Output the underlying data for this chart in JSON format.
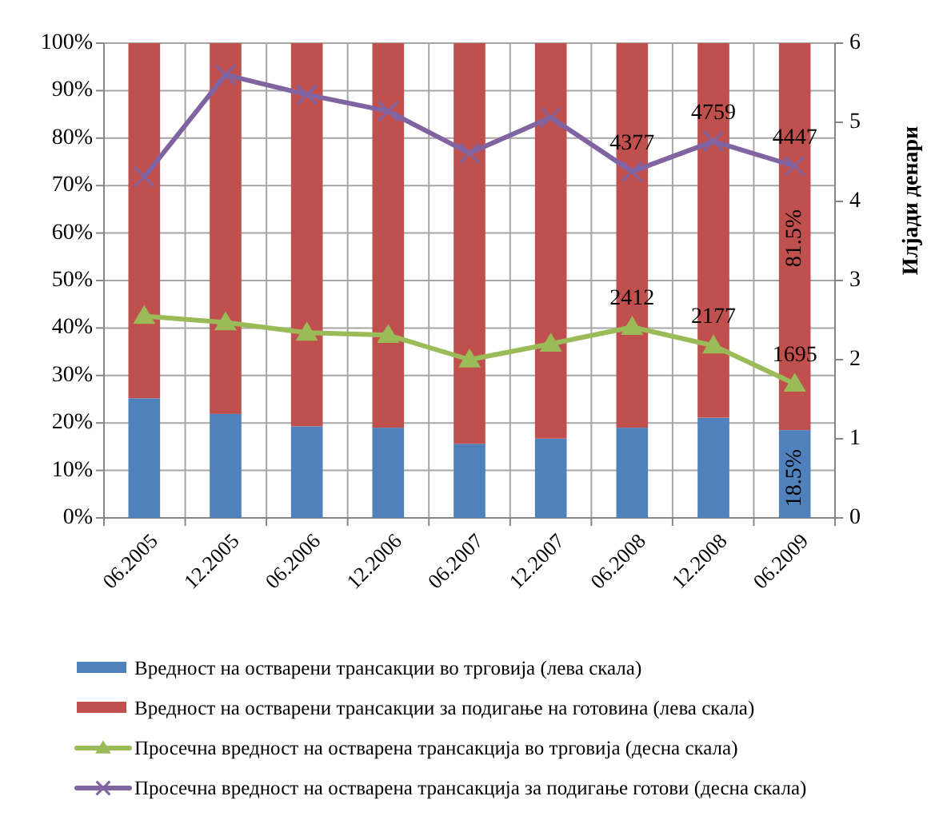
{
  "chart_data": {
    "type": "bar",
    "stacked": true,
    "categories": [
      "06.2005",
      "12.2005",
      "06.2006",
      "12.2006",
      "06.2007",
      "12.2007",
      "06.2008",
      "12.2008",
      "06.2009"
    ],
    "y2label": "Илјади денари",
    "ylim": [
      0,
      100
    ],
    "yticks": [
      {
        "value": 0,
        "label": "0%"
      },
      {
        "value": 10,
        "label": "10%"
      },
      {
        "value": 20,
        "label": "20%"
      },
      {
        "value": 30,
        "label": "30%"
      },
      {
        "value": 40,
        "label": "40%"
      },
      {
        "value": 50,
        "label": "50%"
      },
      {
        "value": 60,
        "label": "60%"
      },
      {
        "value": 70,
        "label": "70%"
      },
      {
        "value": 80,
        "label": "80%"
      },
      {
        "value": 90,
        "label": "90%"
      },
      {
        "value": 100,
        "label": "100%"
      }
    ],
    "y2lim": [
      0,
      6
    ],
    "y2ticks": [
      0,
      1,
      2,
      3,
      4,
      5,
      6
    ],
    "grid": true,
    "legend": "bottom",
    "series": [
      {
        "name": "Вредност на остварени трансакции во трговија (лева скала)",
        "color": "#4f81bd",
        "values": [
          25.2,
          21.9,
          19.3,
          19.0,
          15.6,
          16.7,
          19.0,
          21.1,
          18.5
        ],
        "value_labels": [
          null,
          null,
          null,
          null,
          null,
          null,
          null,
          null,
          "18.5%"
        ]
      },
      {
        "name": "Вредност на остварени трансакции за подигање на готовина (лева скала)",
        "color": "#c0504d",
        "values": [
          74.8,
          78.1,
          80.7,
          81.0,
          84.4,
          83.3,
          81.0,
          78.9,
          81.5
        ],
        "value_labels": [
          null,
          null,
          null,
          null,
          null,
          null,
          null,
          null,
          "81.5%"
        ]
      },
      {
        "name": "Просечна вредност на остварена трансакција во трговија (десна скала)",
        "type": "line",
        "axis": "y2",
        "marker": "triangle",
        "color": "#9bbb59",
        "values": [
          2.55,
          2.47,
          2.34,
          2.31,
          2.0,
          2.2,
          2.412,
          2.177,
          1.695
        ]
      },
      {
        "name": "Просечна вредност на остварена трансакција за подигање готови (десна скала)",
        "type": "line",
        "axis": "y2",
        "marker": "cross",
        "color": "#8064a2",
        "values": [
          4.31,
          5.6,
          5.35,
          5.14,
          4.61,
          5.06,
          4.377,
          4.759,
          4.447
        ]
      }
    ],
    "annotations": [
      "2412",
      "2177",
      "1695",
      "4377",
      "4759",
      "4447"
    ]
  }
}
